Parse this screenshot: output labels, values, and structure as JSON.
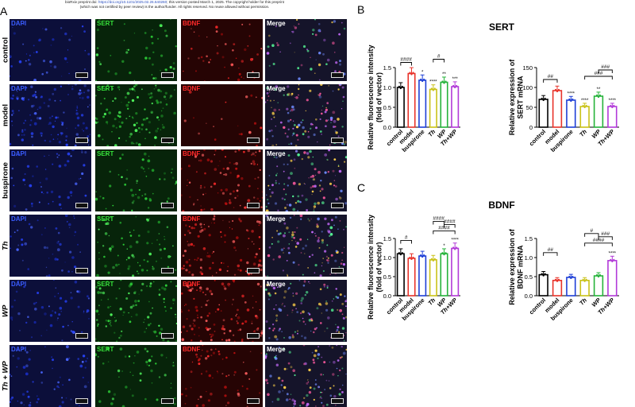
{
  "header": {
    "line1_pre": "bioRxiv preprint doi: ",
    "doi_link": "https://doi.org/10.1101/2025.02.26.640260",
    "line1_post": "; this version posted March 1, 2025. The copyright holder for this preprint",
    "line2": "(which was not certified by peer review) is the author/funder. All rights reserved. No reuse allowed without permission."
  },
  "panel_a": {
    "letter": "A",
    "channels": [
      {
        "label": "DAPI",
        "color": "#3a5cff"
      },
      {
        "label": "SERT",
        "color": "#36e03a"
      },
      {
        "label": "BDNF",
        "color": "#ff2a2a"
      },
      {
        "label": "Merge",
        "color": "#ffffff"
      }
    ],
    "rows": [
      {
        "label": "control",
        "italic": false
      },
      {
        "label": "model",
        "italic": false
      },
      {
        "label": "buspirone",
        "italic": false
      },
      {
        "label": "Th",
        "italic": true
      },
      {
        "label": "WP",
        "italic": true
      },
      {
        "label": "Th + WP",
        "italic": true
      }
    ]
  },
  "panel_b": {
    "letter": "B",
    "title": "SERT"
  },
  "panel_c": {
    "letter": "C",
    "title": "BDNF"
  },
  "chart_data": [
    {
      "type": "bar",
      "panel": "B-left",
      "categories": [
        "control",
        "model",
        "buspirone",
        "Th",
        "WP",
        "Th+WP"
      ],
      "values": [
        1.0,
        1.35,
        1.18,
        0.95,
        1.13,
        1.02
      ],
      "colors": [
        "#000000",
        "#e8332a",
        "#1e3fd6",
        "#c9c218",
        "#25b33a",
        "#b23ad8"
      ],
      "ylabel": "Relative fluorescence intensity (fold of vector)",
      "ylim": [
        0,
        1.5
      ],
      "yticks": [
        "0.0",
        "0.5",
        "1.0",
        "1.5"
      ],
      "stars": [
        "",
        "",
        "*",
        "****",
        "**",
        "***"
      ],
      "brackets": [
        {
          "from": 0,
          "to": 1,
          "label": "####"
        },
        {
          "from": 3,
          "to": 4,
          "label": "#"
        }
      ]
    },
    {
      "type": "bar",
      "panel": "B-right",
      "categories": [
        "control",
        "model",
        "buspirone",
        "Th",
        "WP",
        "Th+WP"
      ],
      "values": [
        70,
        92,
        68,
        52,
        78,
        52
      ],
      "colors": [
        "#000000",
        "#e8332a",
        "#1e3fd6",
        "#c9c218",
        "#25b33a",
        "#b23ad8"
      ],
      "ylabel": "Relative expression of SERT mRNA",
      "ylim": [
        0,
        150
      ],
      "yticks": [
        "0",
        "50",
        "100",
        "150"
      ],
      "stars": [
        "",
        "",
        "****",
        "****",
        "**",
        "****"
      ],
      "brackets": [
        {
          "from": 0,
          "to": 1,
          "label": "##"
        },
        {
          "from": 3,
          "to": 5,
          "label": "###"
        },
        {
          "from": 4,
          "to": 5,
          "label": "###"
        }
      ]
    },
    {
      "type": "bar",
      "panel": "C-left",
      "categories": [
        "control",
        "model",
        "buspirone",
        "Th",
        "WP",
        "Th+WP"
      ],
      "values": [
        1.1,
        0.98,
        1.04,
        0.94,
        1.1,
        1.24
      ],
      "colors": [
        "#000000",
        "#e8332a",
        "#1e3fd6",
        "#c9c218",
        "#25b33a",
        "#b23ad8"
      ],
      "ylabel": "Relative fluorescence intensity (fold of vector)",
      "ylim": [
        0,
        1.5
      ],
      "yticks": [
        "0.0",
        "0.5",
        "1.0",
        "1.5"
      ],
      "stars": [
        "",
        "",
        "",
        "",
        "*",
        "****"
      ],
      "brackets": [
        {
          "from": 0,
          "to": 1,
          "label": "#"
        },
        {
          "from": 3,
          "to": 5,
          "label": "####"
        },
        {
          "from": 4,
          "to": 5,
          "label": "####"
        },
        {
          "from": 3,
          "to": 4,
          "label": "####"
        }
      ]
    },
    {
      "type": "bar",
      "panel": "C-right",
      "categories": [
        "control",
        "model",
        "buspirone",
        "Th",
        "WP",
        "Th+WP"
      ],
      "values": [
        0.55,
        0.4,
        0.48,
        0.4,
        0.52,
        0.92
      ],
      "colors": [
        "#000000",
        "#e8332a",
        "#1e3fd6",
        "#c9c218",
        "#25b33a",
        "#b23ad8"
      ],
      "ylabel": "Relative expression of BDNF mRNA",
      "ylim": [
        0,
        1.5
      ],
      "yticks": [
        "0.0",
        "0.5",
        "1.0",
        "1.5"
      ],
      "stars": [
        "",
        "",
        "",
        "",
        "",
        "****"
      ],
      "brackets": [
        {
          "from": 0,
          "to": 1,
          "label": "##"
        },
        {
          "from": 3,
          "to": 5,
          "label": "####"
        },
        {
          "from": 4,
          "to": 5,
          "label": "###"
        },
        {
          "from": 3,
          "to": 4,
          "label": "#"
        }
      ]
    }
  ]
}
